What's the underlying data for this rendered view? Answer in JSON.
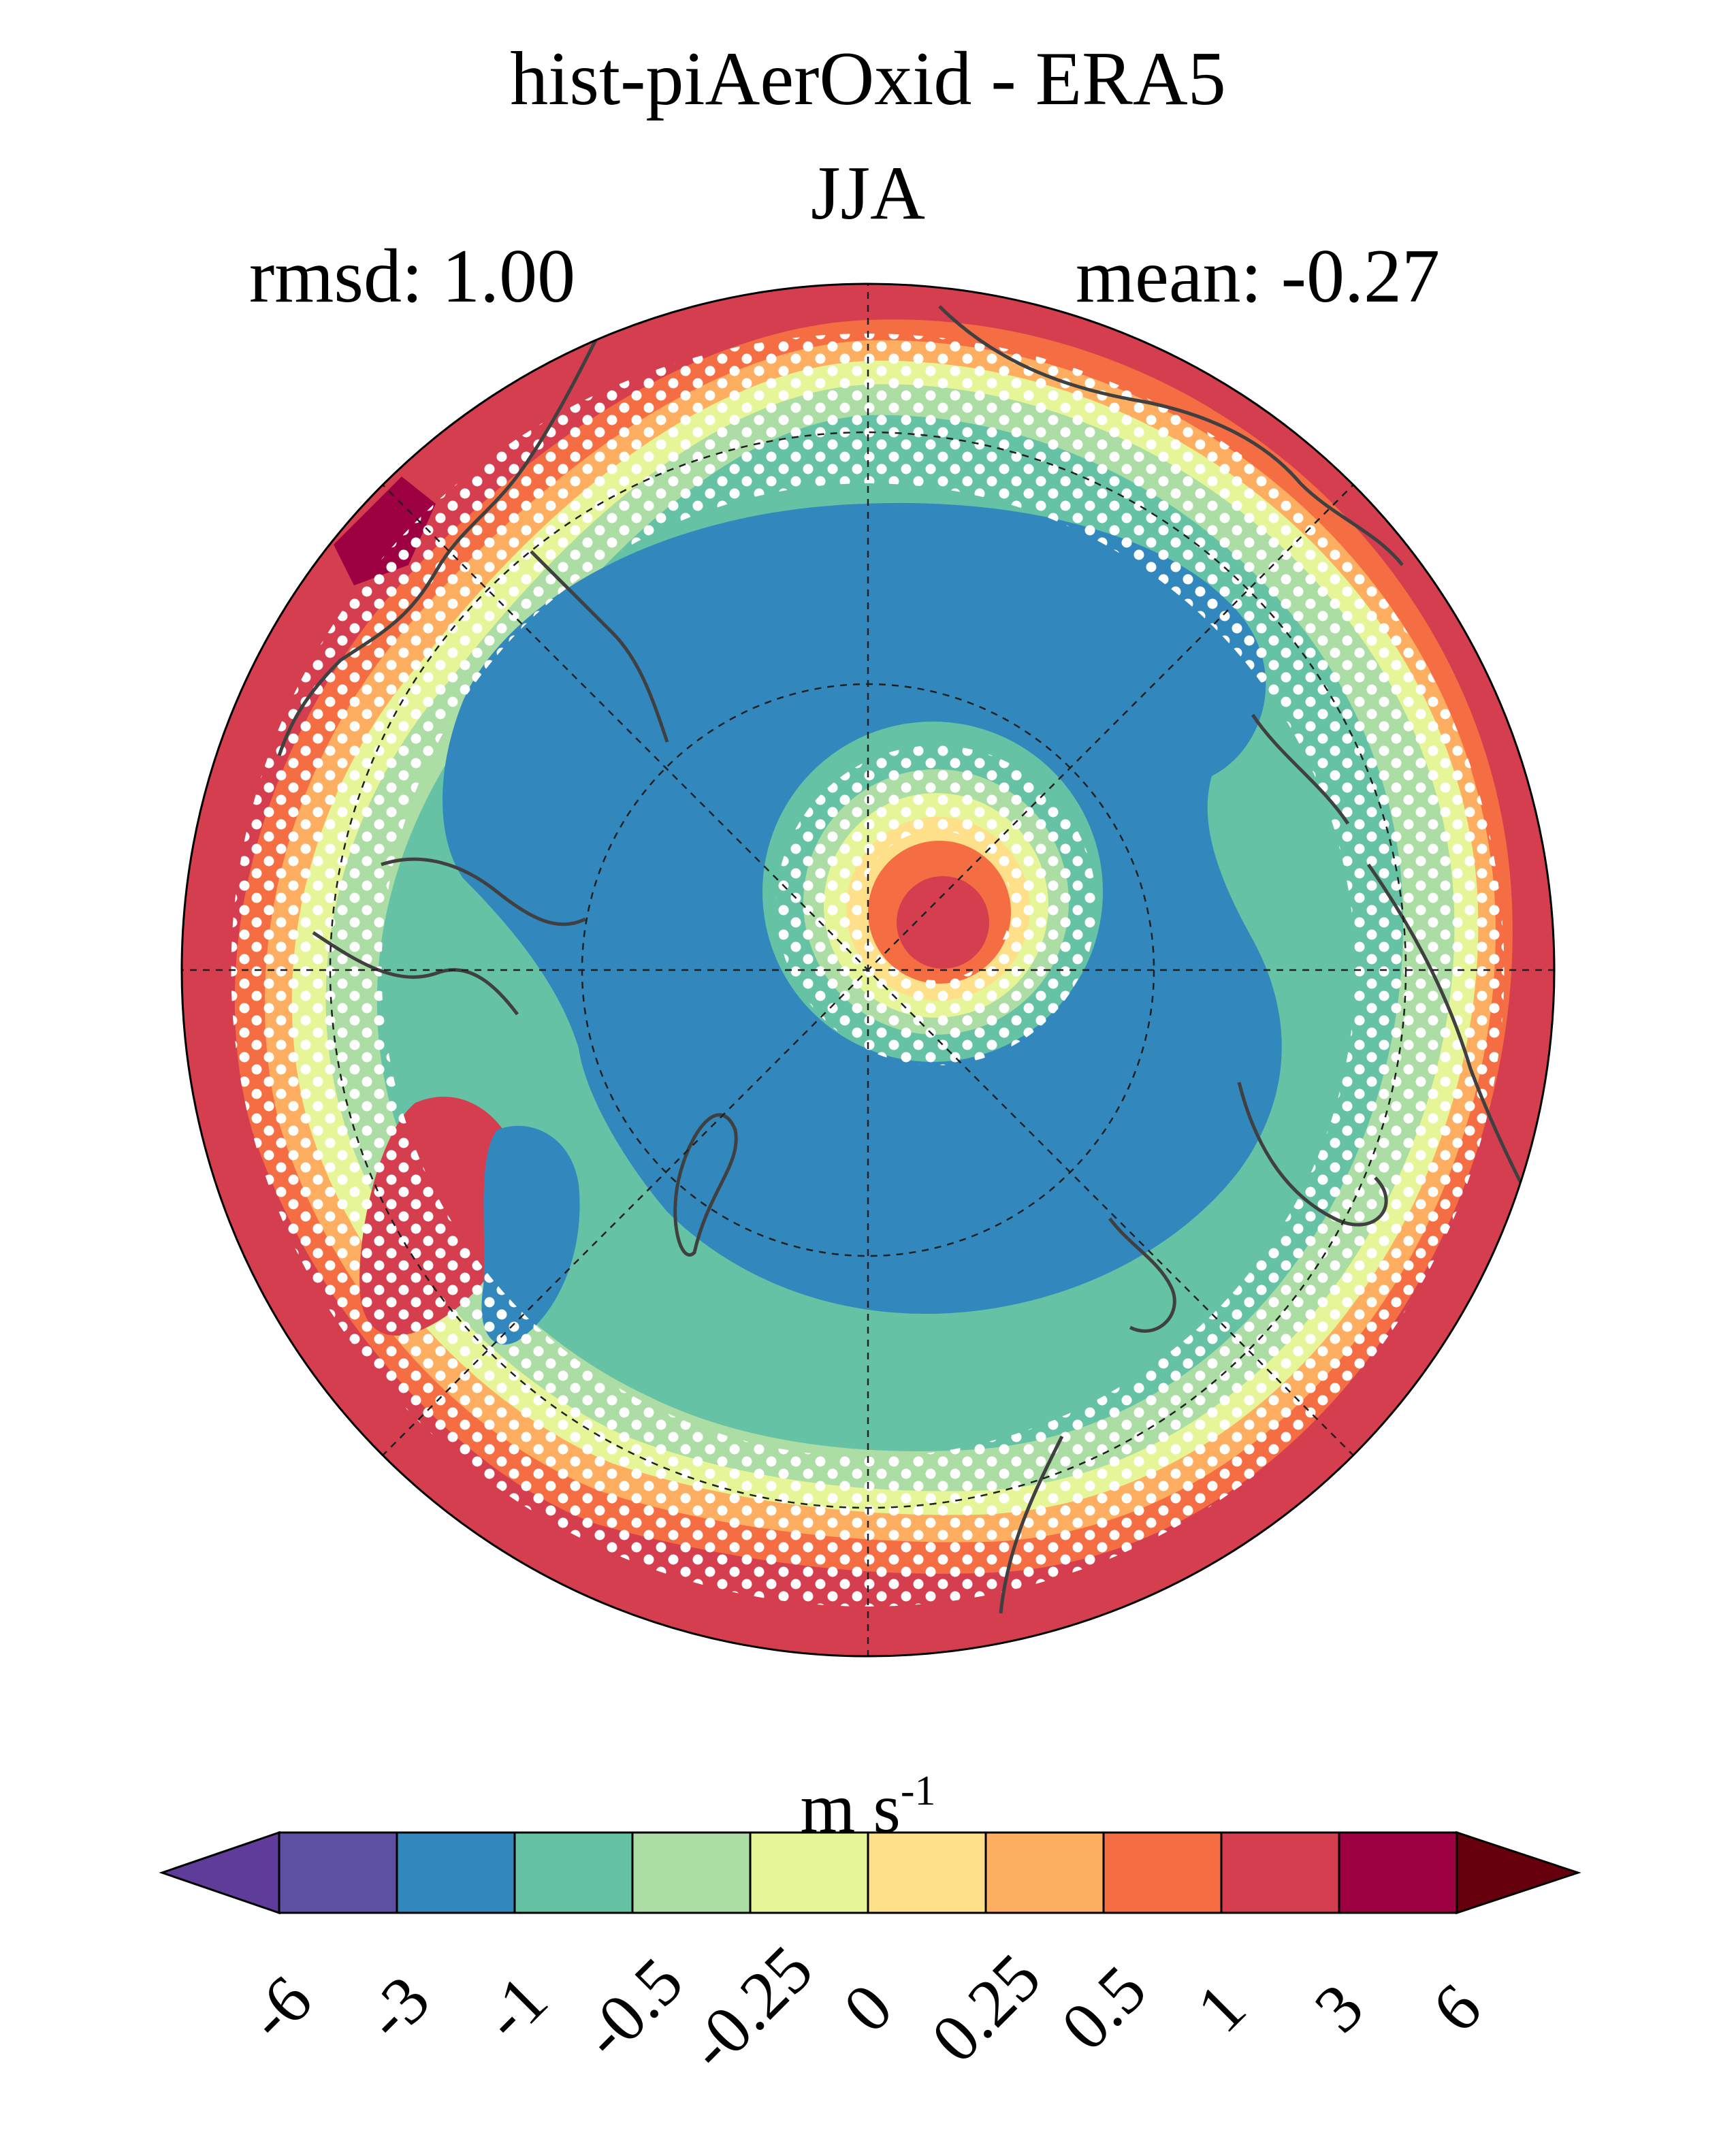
{
  "title": "hist-piAerOxid - ERA5",
  "season": "JJA",
  "stats": {
    "rmsd": "rmsd: 1.00",
    "mean": "mean: -0.27"
  },
  "colorbar": {
    "unit_base": "m s",
    "unit_exp": "-1",
    "ticks": [
      "-6",
      "-3",
      "-1",
      "-0.5",
      "-0.25",
      "0",
      "0.25",
      "0.5",
      "1",
      "3",
      "6"
    ],
    "colors": [
      "#5e3c99",
      "#5e50a1",
      "#3288bd",
      "#66c2a5",
      "#abdda4",
      "#e6f598",
      "#fee08b",
      "#fdae61",
      "#f46d43",
      "#d53e4f",
      "#9e0142",
      "#67000d"
    ]
  },
  "map": {
    "projection": "north-polar-stereographic",
    "field": "difference",
    "stippling": "white dots"
  }
}
